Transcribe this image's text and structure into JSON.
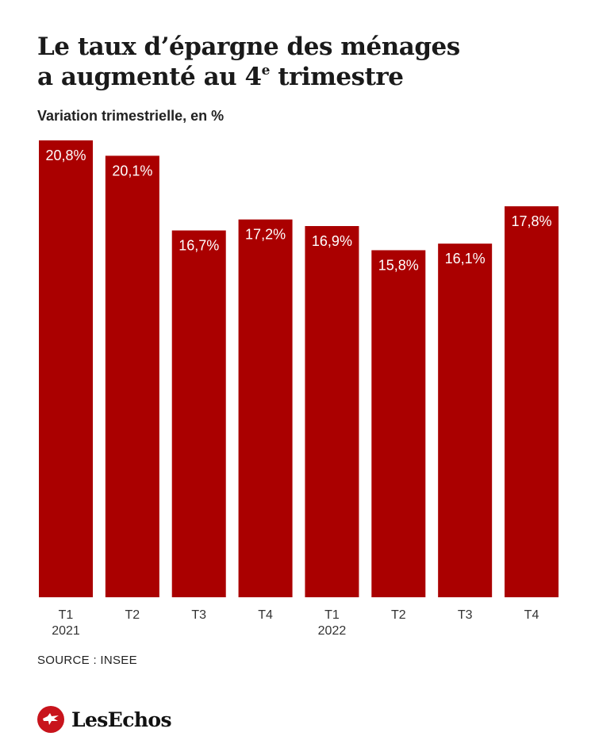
{
  "header": {
    "title_line1": "Le taux d’épargne des ménages",
    "title_line2_main": "a augmenté au 4",
    "title_line2_sup": "e",
    "title_line2_end": " trimestre",
    "subtitle": "Variation trimestrielle, en %"
  },
  "footer": {
    "source": "SOURCE : INSEE",
    "brand": "LesEchos",
    "brand_icon": "les-echos-eagle-icon"
  },
  "colors": {
    "bar": "#aa0000",
    "label": "#ffffff",
    "axis_text": "#333333",
    "brand": "#c8141c"
  },
  "chart_data": {
    "type": "bar",
    "title": "",
    "xlabel": "",
    "ylabel": "",
    "categories": [
      "T1",
      "T2",
      "T3",
      "T4",
      "T1",
      "T2",
      "T3",
      "T4"
    ],
    "category_years": [
      "2021",
      "",
      "",
      "",
      "2022",
      "",
      "",
      ""
    ],
    "values": [
      20.8,
      20.1,
      16.7,
      17.2,
      16.9,
      15.8,
      16.1,
      17.8
    ],
    "value_labels": [
      "20,8%",
      "20,1%",
      "16,7%",
      "17,2%",
      "16,9%",
      "15,8%",
      "16,1%",
      "17,8%"
    ],
    "ylim": [
      0,
      20.8
    ],
    "grid": false,
    "legend": "none"
  }
}
